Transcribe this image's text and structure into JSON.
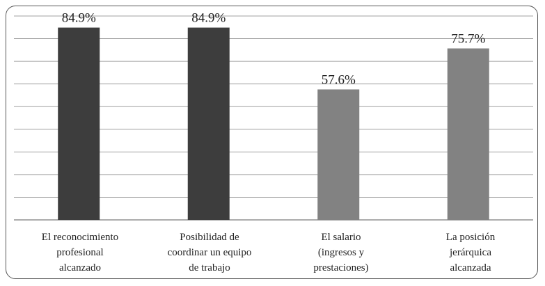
{
  "chart_data": {
    "type": "bar",
    "categories": [
      "El reconocimiento profesional alcanzado",
      "Posibilidad de coordinar un equipo de trabajo",
      "El salario (ingresos y prestaciones)",
      "La posición jerárquica alcanzada"
    ],
    "category_lines": [
      [
        "El reconocimiento",
        "profesional",
        "alcanzado"
      ],
      [
        "Posibilidad de",
        "coordinar un equipo",
        "de trabajo"
      ],
      [
        "El salario",
        "(ingresos y",
        "prestaciones)"
      ],
      [
        "La posición",
        "jerárquica",
        "alcanzada"
      ]
    ],
    "values": [
      84.9,
      84.9,
      57.6,
      75.7
    ],
    "value_labels": [
      "84.9%",
      "84.9%",
      "57.6%",
      "75.7%"
    ],
    "bar_colors": [
      "#3d3d3d",
      "#3d3d3d",
      "#828282",
      "#828282"
    ],
    "ylim": [
      0,
      90
    ],
    "grid": true,
    "legend": "none"
  },
  "colors": {
    "frame": "#555555",
    "grid": "#a0a0a0",
    "axis": "#7a7a7a"
  }
}
